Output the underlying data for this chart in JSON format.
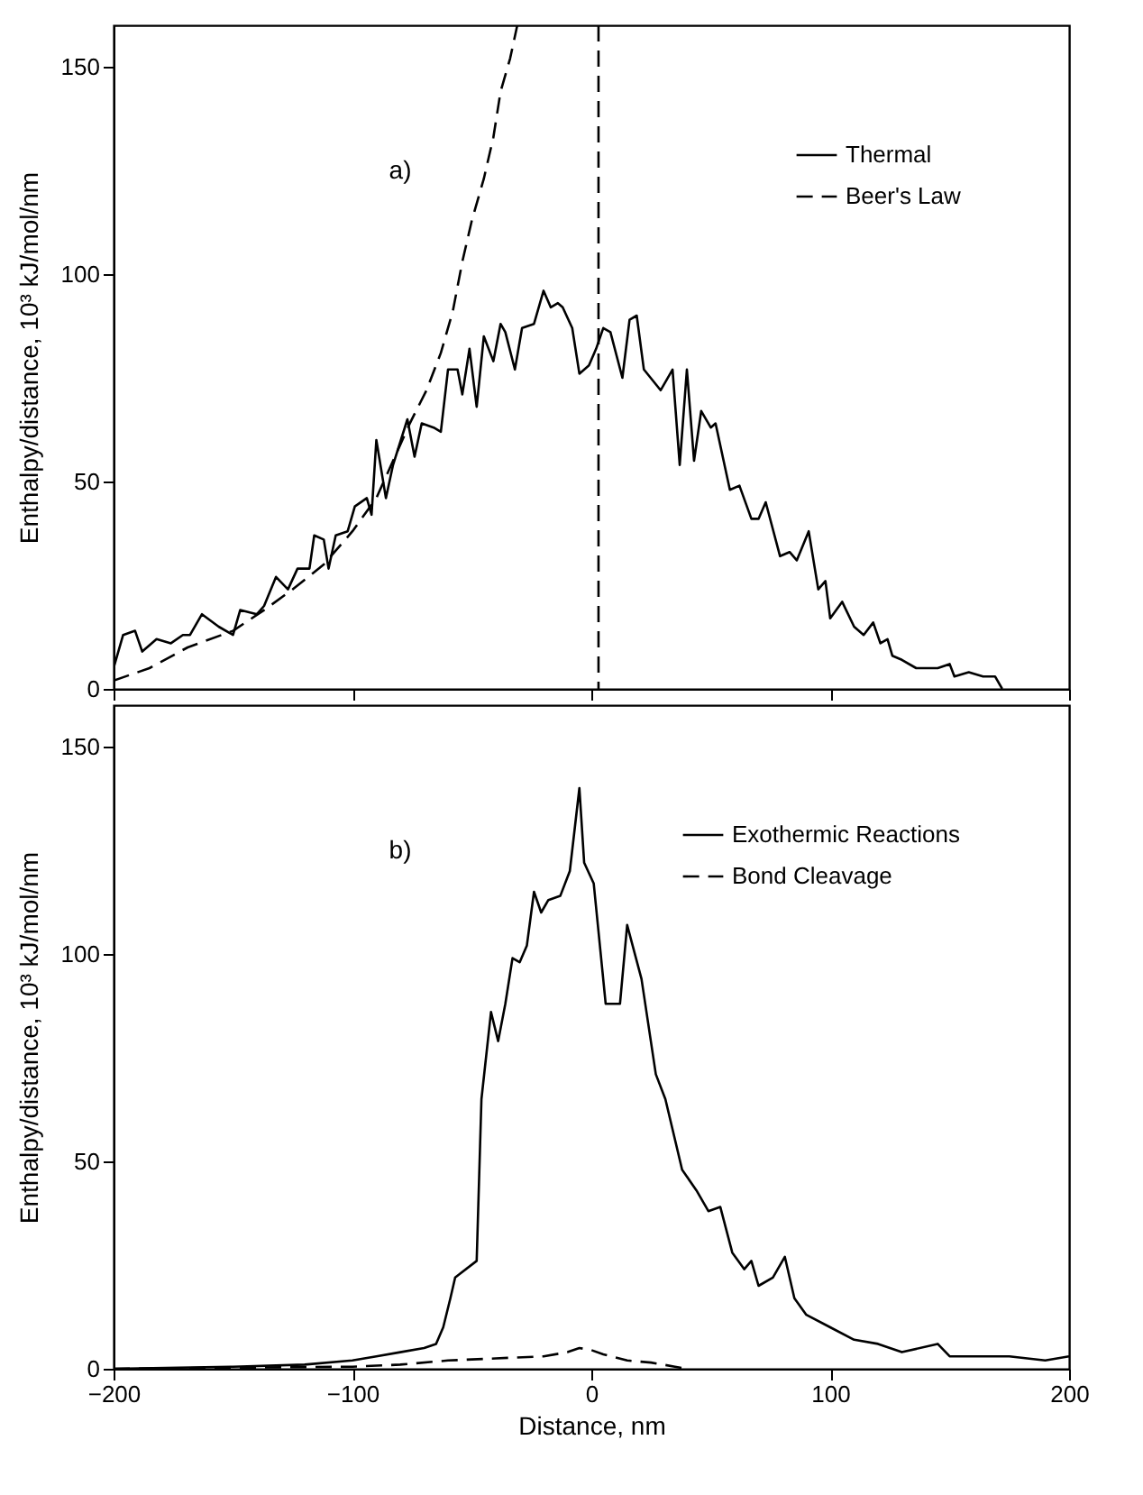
{
  "chart_data": [
    {
      "type": "line",
      "ylabel": "Enthalpy/distance, 10³ kJ/mol/nm",
      "annotations": [
        "a)"
      ],
      "xlim": [
        -200,
        200
      ],
      "ylim": [
        0,
        160
      ],
      "xticks": [
        -200,
        -100,
        0,
        100,
        200
      ],
      "yticks": [
        0,
        50,
        100,
        150
      ],
      "tick_labels": "y",
      "legend": "top right",
      "grid": false,
      "series": [
        {
          "name": "Thermal",
          "color": "#000000",
          "line_style": "solid",
          "x": [
            -200,
            -196,
            -191,
            -188,
            -182,
            -176,
            -171,
            -168,
            -163,
            -156,
            -150,
            -147,
            -140,
            -137,
            -132,
            -127,
            -123,
            -118,
            -116,
            -112,
            -110,
            -107,
            -102,
            -99,
            -94,
            -92,
            -90,
            -86,
            -83,
            -77,
            -74,
            -71,
            -66,
            -63,
            -60,
            -56,
            -54,
            -51,
            -48,
            -45,
            -41,
            -38,
            -36,
            -32,
            -29,
            -24,
            -20,
            -17,
            -14,
            -12,
            -8,
            -5,
            -1,
            2,
            5,
            8,
            13,
            16,
            19,
            22,
            29,
            34,
            37,
            40,
            43,
            46,
            50,
            52,
            58,
            62,
            67,
            70,
            73,
            79,
            83,
            86,
            91,
            95,
            98,
            100,
            105,
            110,
            114,
            118,
            121,
            124,
            126,
            130,
            136,
            145,
            150,
            152,
            158,
            164,
            169,
            172
          ],
          "values": [
            5,
            13,
            14,
            9,
            12,
            11,
            13,
            13,
            18,
            15,
            13,
            19,
            18,
            20,
            27,
            24,
            29,
            29,
            37,
            36,
            29,
            37,
            38,
            44,
            46,
            42,
            60,
            46,
            54,
            65,
            56,
            64,
            63,
            62,
            77,
            77,
            71,
            82,
            68,
            85,
            79,
            88,
            86,
            77,
            87,
            88,
            96,
            92,
            93,
            92,
            87,
            76,
            78,
            82,
            87,
            86,
            75,
            89,
            90,
            77,
            72,
            77,
            54,
            77,
            55,
            67,
            63,
            64,
            48,
            49,
            41,
            41,
            45,
            32,
            33,
            31,
            38,
            24,
            26,
            17,
            21,
            15,
            13,
            16,
            11,
            12,
            8,
            7,
            5,
            5,
            6,
            3,
            4,
            3,
            3,
            0
          ]
        },
        {
          "name": "Beer's Law",
          "color": "#000000",
          "line_style": "dashed",
          "x": [
            -200,
            -185,
            -169,
            -150,
            -137,
            -125,
            -112,
            -100,
            -90,
            -83,
            -76,
            -69,
            -63,
            -58,
            -54,
            -50,
            -45,
            -41,
            -38,
            -34,
            -31
          ],
          "values": [
            2,
            5,
            10,
            14,
            19,
            24,
            30,
            38,
            46,
            55,
            64,
            72,
            81,
            91,
            103,
            113,
            123,
            133,
            144,
            152,
            160
          ]
        }
      ],
      "ref_lines": [
        {
          "axis": "x",
          "value": 3,
          "color": "#000000",
          "line_style": "dashed"
        }
      ]
    },
    {
      "type": "line",
      "xlabel": "Distance, nm",
      "ylabel": "Enthalpy/distance, 10³ kJ/mol/nm",
      "annotations": [
        "b)"
      ],
      "xlim": [
        -200,
        200
      ],
      "ylim": [
        0,
        160
      ],
      "xticks": [
        -200,
        -100,
        0,
        100,
        200
      ],
      "yticks": [
        0,
        50,
        100,
        150
      ],
      "legend": "top right",
      "grid": false,
      "series": [
        {
          "name": "Exothermic Reactions",
          "color": "#000000",
          "line_style": "solid",
          "x": [
            -200,
            -150,
            -120,
            -100,
            -90,
            -80,
            -70,
            -65,
            -62,
            -59,
            -57,
            -48,
            -46,
            -42,
            -39,
            -36,
            -33,
            -30,
            -27,
            -24,
            -21,
            -18,
            -13,
            -9,
            -5,
            -3,
            1,
            6,
            12,
            15,
            21,
            27,
            31,
            38,
            44,
            49,
            54,
            59,
            64,
            67,
            70,
            76,
            81,
            85,
            90,
            100,
            110,
            120,
            130,
            145,
            150,
            160,
            175,
            190,
            200
          ],
          "values": [
            0,
            0.5,
            1,
            2,
            3,
            4,
            5,
            6,
            10,
            17,
            22,
            26,
            65,
            86,
            79,
            88,
            99,
            98,
            102,
            115,
            110,
            113,
            114,
            120,
            140,
            122,
            117,
            88,
            88,
            107,
            94,
            71,
            65,
            48,
            43,
            38,
            39,
            28,
            24,
            26,
            20,
            22,
            27,
            17,
            13,
            10,
            7,
            6,
            4,
            6,
            3,
            3,
            3,
            2,
            3
          ]
        },
        {
          "name": "Bond Cleavage",
          "color": "#000000",
          "line_style": "dashed",
          "x": [
            -200,
            -100,
            -80,
            -60,
            -40,
            -20,
            -10,
            -5,
            0,
            5,
            15,
            25,
            35,
            40
          ],
          "values": [
            0,
            0.5,
            1,
            2,
            2.5,
            3,
            4,
            5,
            4.5,
            3.5,
            2,
            1.5,
            0.5,
            0
          ]
        }
      ]
    }
  ]
}
